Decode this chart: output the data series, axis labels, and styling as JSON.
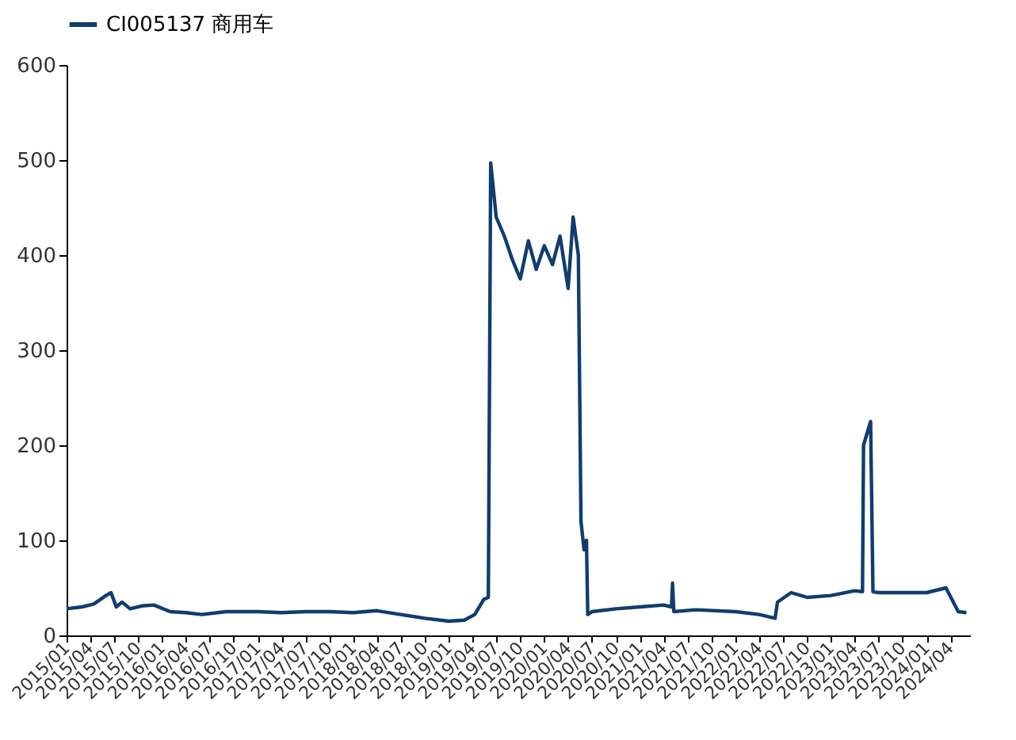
{
  "chart_data": {
    "type": "line",
    "legend": "top",
    "grid": false,
    "ylim": [
      0,
      600
    ],
    "yticks": [
      0,
      100,
      200,
      300,
      400,
      500,
      600
    ],
    "xlim": [
      "2015-01-01",
      "2024-06-15"
    ],
    "xticks": [
      {
        "value": "2015-01-01",
        "label": "2015/01"
      },
      {
        "value": "2015-04-01",
        "label": "2015/04"
      },
      {
        "value": "2015-07-01",
        "label": "2015/07"
      },
      {
        "value": "2015-10-01",
        "label": "2015/10"
      },
      {
        "value": "2016-01-01",
        "label": "2016/01"
      },
      {
        "value": "2016-04-01",
        "label": "2016/04"
      },
      {
        "value": "2016-07-01",
        "label": "2016/07"
      },
      {
        "value": "2016-10-01",
        "label": "2016/10"
      },
      {
        "value": "2017-01-01",
        "label": "2017/01"
      },
      {
        "value": "2017-04-01",
        "label": "2017/04"
      },
      {
        "value": "2017-07-01",
        "label": "2017/07"
      },
      {
        "value": "2017-10-01",
        "label": "2017/10"
      },
      {
        "value": "2018-01-01",
        "label": "2018/01"
      },
      {
        "value": "2018-04-01",
        "label": "2018/04"
      },
      {
        "value": "2018-07-01",
        "label": "2018/07"
      },
      {
        "value": "2018-10-01",
        "label": "2018/10"
      },
      {
        "value": "2019-01-01",
        "label": "2019/01"
      },
      {
        "value": "2019-04-01",
        "label": "2019/04"
      },
      {
        "value": "2019-07-01",
        "label": "2019/07"
      },
      {
        "value": "2019-10-01",
        "label": "2019/10"
      },
      {
        "value": "2020-01-01",
        "label": "2020/01"
      },
      {
        "value": "2020-04-01",
        "label": "2020/04"
      },
      {
        "value": "2020-07-01",
        "label": "2020/07"
      },
      {
        "value": "2020-10-01",
        "label": "2020/10"
      },
      {
        "value": "2021-01-01",
        "label": "2021/01"
      },
      {
        "value": "2021-04-01",
        "label": "2021/04"
      },
      {
        "value": "2021-07-01",
        "label": "2021/07"
      },
      {
        "value": "2021-10-01",
        "label": "2021/10"
      },
      {
        "value": "2022-01-01",
        "label": "2022/01"
      },
      {
        "value": "2022-04-01",
        "label": "2022/04"
      },
      {
        "value": "2022-07-01",
        "label": "2022/07"
      },
      {
        "value": "2022-10-01",
        "label": "2022/10"
      },
      {
        "value": "2023-01-01",
        "label": "2023/01"
      },
      {
        "value": "2023-04-01",
        "label": "2023/04"
      },
      {
        "value": "2023-07-01",
        "label": "2023/07"
      },
      {
        "value": "2023-10-01",
        "label": "2023/10"
      },
      {
        "value": "2024-01-01",
        "label": "2024/01"
      },
      {
        "value": "2024-04-01",
        "label": "2024/04"
      }
    ],
    "series": [
      {
        "name": "CI005137 商用车",
        "color": "#0f3d6e",
        "x": [
          "2015-01-01",
          "2015-03-01",
          "2015-04-15",
          "2015-06-01",
          "2015-06-20",
          "2015-07-10",
          "2015-08-01",
          "2015-09-01",
          "2015-10-15",
          "2015-12-01",
          "2016-02-01",
          "2016-04-01",
          "2016-06-01",
          "2016-09-01",
          "2017-01-01",
          "2017-04-01",
          "2017-07-01",
          "2017-10-01",
          "2018-01-01",
          "2018-04-01",
          "2018-07-01",
          "2018-10-01",
          "2019-01-01",
          "2019-03-01",
          "2019-04-10",
          "2019-05-15",
          "2019-06-01",
          "2019-06-10",
          "2019-07-01",
          "2019-08-01",
          "2019-09-01",
          "2019-10-01",
          "2019-11-01",
          "2019-12-01",
          "2020-01-01",
          "2020-02-01",
          "2020-03-01",
          "2020-04-01",
          "2020-04-20",
          "2020-05-10",
          "2020-05-20",
          "2020-06-01",
          "2020-06-10",
          "2020-06-15",
          "2020-07-01",
          "2020-10-01",
          "2021-01-01",
          "2021-04-01",
          "2021-05-01",
          "2021-05-05",
          "2021-05-10",
          "2021-08-01",
          "2022-01-01",
          "2022-04-01",
          "2022-06-01",
          "2022-06-10",
          "2022-08-01",
          "2022-10-01",
          "2023-01-01",
          "2023-04-01",
          "2023-05-01",
          "2023-05-05",
          "2023-06-01",
          "2023-06-10",
          "2023-07-01",
          "2023-10-01",
          "2024-01-01",
          "2024-03-15",
          "2024-05-01",
          "2024-06-01"
        ],
        "values": [
          28,
          30,
          33,
          42,
          45,
          30,
          35,
          28,
          31,
          32,
          25,
          24,
          22,
          25,
          25,
          24,
          25,
          25,
          24,
          26,
          22,
          18,
          15,
          16,
          22,
          38,
          40,
          497,
          440,
          420,
          395,
          375,
          415,
          385,
          410,
          390,
          420,
          365,
          440,
          400,
          120,
          90,
          100,
          22,
          25,
          28,
          30,
          32,
          30,
          55,
          25,
          27,
          25,
          22,
          18,
          35,
          45,
          40,
          42,
          47,
          46,
          200,
          225,
          46,
          45,
          45,
          45,
          50,
          25,
          24
        ]
      }
    ]
  }
}
